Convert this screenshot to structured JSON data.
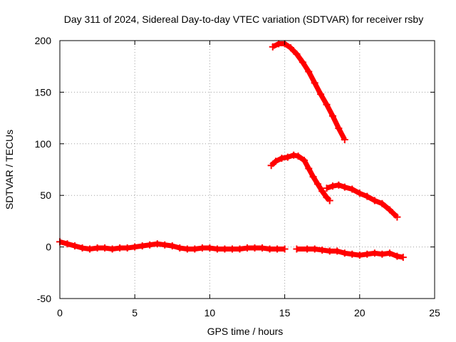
{
  "chart_data": {
    "type": "scatter",
    "title": "Day 311 of 2024, Sidereal Day-to-day VTEC variation (SDTVAR) for receiver rsby",
    "xlabel": "GPS time / hours",
    "ylabel": "SDTVAR / TECUs",
    "xlim": [
      0,
      25
    ],
    "ylim": [
      -50,
      200
    ],
    "xticks": [
      0,
      5,
      10,
      15,
      20,
      25
    ],
    "yticks": [
      -50,
      0,
      50,
      100,
      150,
      200
    ],
    "grid": true,
    "marker": "plus",
    "color": "#ff0000",
    "series": [
      {
        "name": "baseline-a",
        "x": [
          0,
          0.5,
          1,
          1.5,
          2,
          2.5,
          3,
          3.5,
          4,
          4.5,
          5,
          5.5,
          6,
          6.5,
          7,
          7.5,
          8,
          8.5,
          9,
          9.5,
          10,
          10.5,
          11,
          11.5,
          12,
          12.5,
          13,
          13.5,
          14,
          14.5,
          15
        ],
        "y": [
          5,
          3,
          1,
          -1,
          -2,
          -1,
          -1,
          -2,
          -1,
          -1,
          0,
          1,
          2,
          3,
          2,
          1,
          -1,
          -2,
          -2,
          -1,
          -1,
          -2,
          -2,
          -2,
          -2,
          -1,
          -1,
          -1,
          -2,
          -2,
          -2
        ]
      },
      {
        "name": "baseline-b",
        "x": [
          15.8,
          16.5,
          17,
          17.5,
          18,
          18.5,
          19,
          19.5,
          20,
          20.5,
          21,
          21.5,
          22,
          22.5,
          22.9
        ],
        "y": [
          -2,
          -2,
          -2,
          -3,
          -4,
          -4,
          -6,
          -7,
          -8,
          -7,
          -6,
          -7,
          -6,
          -9,
          -10
        ]
      },
      {
        "name": "upper-arc",
        "x": [
          14.2,
          14.6,
          15,
          15.4,
          15.8,
          16.2,
          16.6,
          17,
          17.4,
          17.8,
          18.2,
          18.6,
          19
        ],
        "y": [
          194,
          197,
          197,
          193,
          187,
          179,
          170,
          159,
          148,
          138,
          127,
          115,
          104
        ]
      },
      {
        "name": "middle-arc",
        "x": [
          14.1,
          14.4,
          14.8,
          15.2,
          15.6,
          15.9,
          16.3,
          16.6,
          16.9,
          17.2,
          17.5,
          17.8,
          18
        ],
        "y": [
          79,
          83,
          86,
          87,
          89,
          88,
          84,
          76,
          68,
          61,
          54,
          48,
          45
        ]
      },
      {
        "name": "tail-arc",
        "x": [
          17.8,
          18.2,
          18.6,
          19,
          19.5,
          20,
          20.5,
          21,
          21.5,
          22,
          22.5
        ],
        "y": [
          57,
          59,
          60,
          58,
          56,
          52,
          49,
          45,
          42,
          36,
          29
        ]
      }
    ]
  }
}
